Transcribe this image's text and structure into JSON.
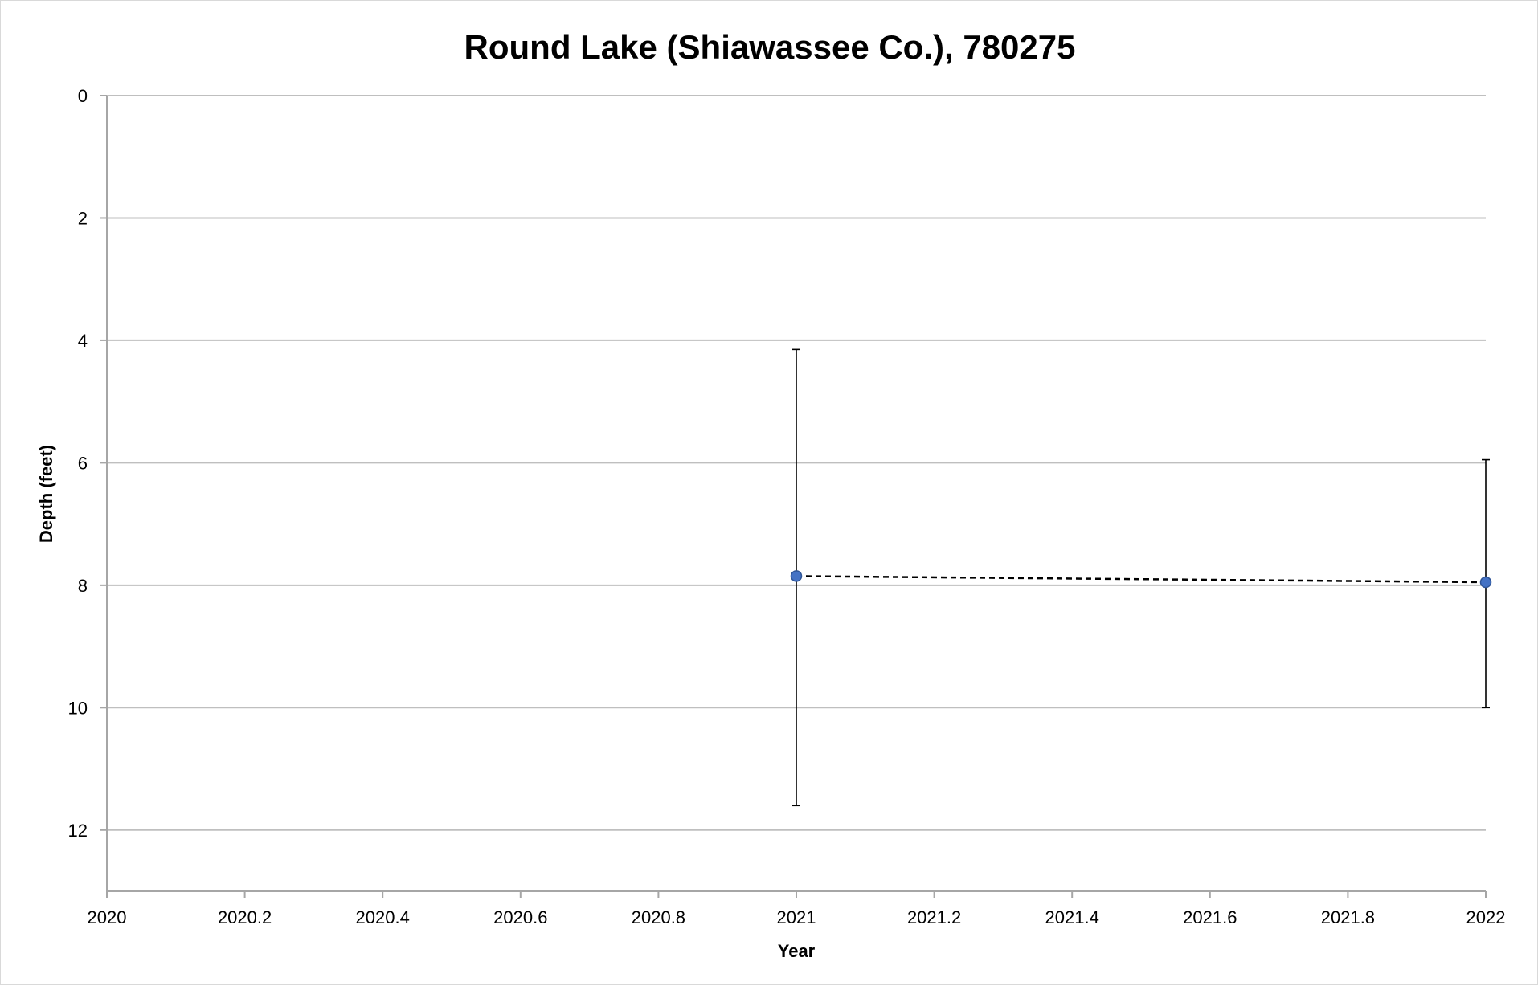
{
  "chart_data": {
    "type": "scatter",
    "title": "Round Lake (Shiawassee Co.), 780275",
    "xlabel": "Year",
    "ylabel": "Depth (feet)",
    "xlim": [
      2020,
      2022
    ],
    "ylim": [
      0,
      13
    ],
    "y_inverted": true,
    "x_ticks": [
      2020,
      2020.2,
      2020.4,
      2020.6,
      2020.8,
      2021,
      2021.2,
      2021.4,
      2021.6,
      2021.8,
      2022
    ],
    "x_tick_labels": [
      "2020",
      "2020.2",
      "2020.4",
      "2020.6",
      "2020.8",
      "2021",
      "2021.2",
      "2021.4",
      "2021.6",
      "2021.8",
      "2022"
    ],
    "y_ticks": [
      0,
      2,
      4,
      6,
      8,
      10,
      12
    ],
    "y_tick_labels": [
      "0",
      "2",
      "4",
      "6",
      "8",
      "10",
      "12"
    ],
    "grid": true,
    "legend": "none",
    "series": [
      {
        "x": [
          2021,
          2022
        ],
        "y": [
          7.85,
          7.95
        ],
        "error_low": [
          4.15,
          5.95
        ],
        "error_high": [
          11.6,
          10.0
        ],
        "marker_color": "#4472c4",
        "line_style": "dashed",
        "line_color": "#000000"
      }
    ]
  }
}
